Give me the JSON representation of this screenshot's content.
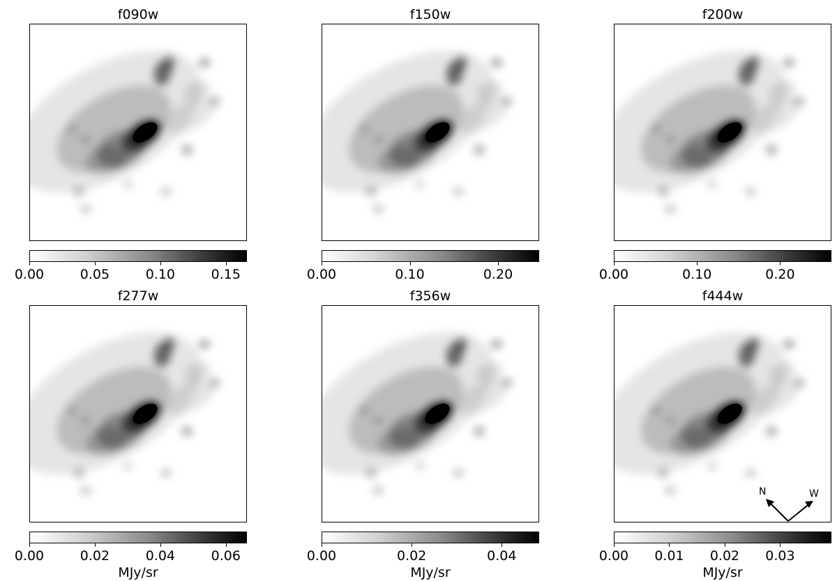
{
  "panels": [
    {
      "filter": "f090w",
      "ticks": [
        "0.00",
        "0.05",
        "0.10",
        "0.15"
      ],
      "tick_values": [
        0.0,
        0.05,
        0.1,
        0.15
      ],
      "vmax": 0.165,
      "unit": ""
    },
    {
      "filter": "f150w",
      "ticks": [
        "0.00",
        "0.10",
        "0.20"
      ],
      "tick_values": [
        0.0,
        0.1,
        0.2
      ],
      "vmax": 0.245,
      "unit": ""
    },
    {
      "filter": "f200w",
      "ticks": [
        "0.00",
        "0.10",
        "0.20"
      ],
      "tick_values": [
        0.0,
        0.1,
        0.2
      ],
      "vmax": 0.26,
      "unit": ""
    },
    {
      "filter": "f277w",
      "ticks": [
        "0.00",
        "0.02",
        "0.04",
        "0.06"
      ],
      "tick_values": [
        0.0,
        0.02,
        0.04,
        0.06
      ],
      "vmax": 0.066,
      "unit": "MJy/sr"
    },
    {
      "filter": "f356w",
      "ticks": [
        "0.00",
        "0.02",
        "0.04"
      ],
      "tick_values": [
        0.0,
        0.02,
        0.04
      ],
      "vmax": 0.048,
      "unit": "MJy/sr"
    },
    {
      "filter": "f444w",
      "ticks": [
        "0.00",
        "0.01",
        "0.02",
        "0.03"
      ],
      "tick_values": [
        0.0,
        0.01,
        0.02,
        0.03
      ],
      "vmax": 0.039,
      "unit": "MJy/sr"
    }
  ],
  "compass": {
    "north_label": "N",
    "west_label": "W"
  },
  "colormap": "greys"
}
